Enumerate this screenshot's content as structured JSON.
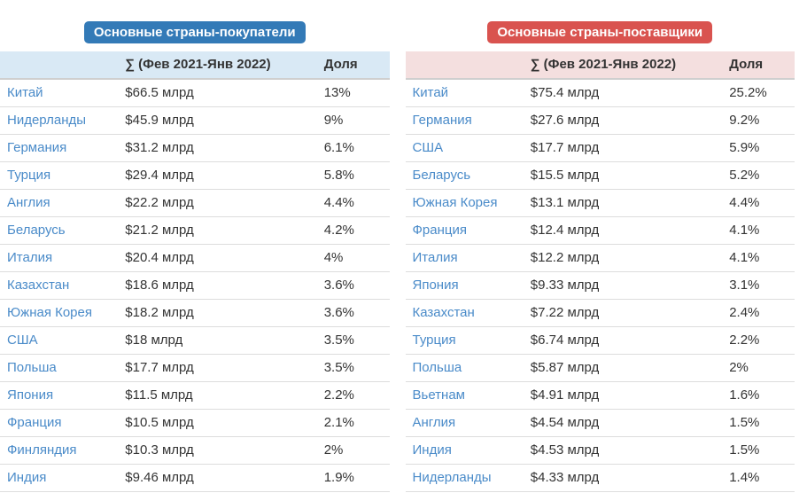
{
  "colors": {
    "buyers_badge_bg": "#337ab7",
    "suppliers_badge_bg": "#d9534f",
    "buyers_header_bg": "#d9e9f5",
    "suppliers_header_bg": "#f4dfdf",
    "country_link": "#4a8bc9",
    "row_border": "#dddddd",
    "text": "#333333"
  },
  "tables": [
    {
      "id": "buyers",
      "badge": "Основные страны-покупатели",
      "columns": [
        "",
        "∑ (Фев 2021-Янв 2022)",
        "Доля"
      ],
      "rows": [
        [
          "Китай",
          "$66.5 млрд",
          "13%"
        ],
        [
          "Нидерланды",
          "$45.9 млрд",
          "9%"
        ],
        [
          "Германия",
          "$31.2 млрд",
          "6.1%"
        ],
        [
          "Турция",
          "$29.4 млрд",
          "5.8%"
        ],
        [
          "Англия",
          "$22.2 млрд",
          "4.4%"
        ],
        [
          "Беларусь",
          "$21.2 млрд",
          "4.2%"
        ],
        [
          "Италия",
          "$20.4 млрд",
          "4%"
        ],
        [
          "Казахстан",
          "$18.6 млрд",
          "3.6%"
        ],
        [
          "Южная Корея",
          "$18.2 млрд",
          "3.6%"
        ],
        [
          "США",
          "$18 млрд",
          "3.5%"
        ],
        [
          "Польша",
          "$17.7 млрд",
          "3.5%"
        ],
        [
          "Япония",
          "$11.5 млрд",
          "2.2%"
        ],
        [
          "Франция",
          "$10.5 млрд",
          "2.1%"
        ],
        [
          "Финляндия",
          "$10.3 млрд",
          "2%"
        ],
        [
          "Индия",
          "$9.46 млрд",
          "1.9%"
        ]
      ]
    },
    {
      "id": "suppliers",
      "badge": "Основные страны-поставщики",
      "columns": [
        "",
        "∑ (Фев 2021-Янв 2022)",
        "Доля"
      ],
      "rows": [
        [
          "Китай",
          "$75.4 млрд",
          "25.2%"
        ],
        [
          "Германия",
          "$27.6 млрд",
          "9.2%"
        ],
        [
          "США",
          "$17.7 млрд",
          "5.9%"
        ],
        [
          "Беларусь",
          "$15.5 млрд",
          "5.2%"
        ],
        [
          "Южная Корея",
          "$13.1 млрд",
          "4.4%"
        ],
        [
          "Франция",
          "$12.4 млрд",
          "4.1%"
        ],
        [
          "Италия",
          "$12.2 млрд",
          "4.1%"
        ],
        [
          "Япония",
          "$9.33 млрд",
          "3.1%"
        ],
        [
          "Казахстан",
          "$7.22 млрд",
          "2.4%"
        ],
        [
          "Турция",
          "$6.74 млрд",
          "2.2%"
        ],
        [
          "Польша",
          "$5.87 млрд",
          "2%"
        ],
        [
          "Вьетнам",
          "$4.91 млрд",
          "1.6%"
        ],
        [
          "Англия",
          "$4.54 млрд",
          "1.5%"
        ],
        [
          "Индия",
          "$4.53 млрд",
          "1.5%"
        ],
        [
          "Нидерланды",
          "$4.33 млрд",
          "1.4%"
        ]
      ]
    }
  ]
}
